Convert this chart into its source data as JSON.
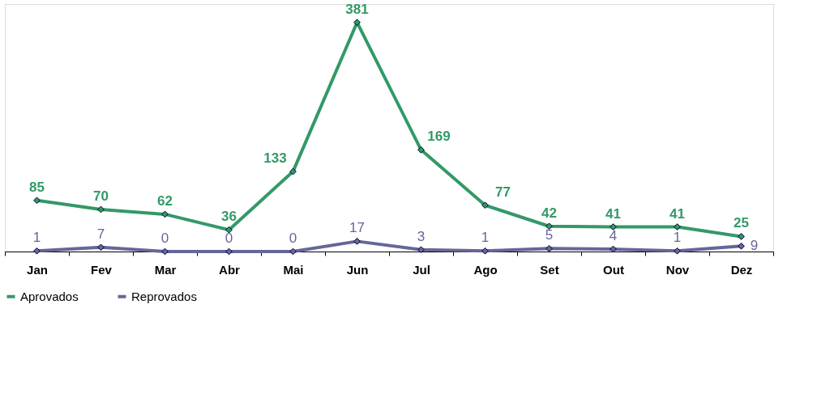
{
  "chart_data": {
    "type": "line",
    "categories": [
      "Jan",
      "Fev",
      "Mar",
      "Abr",
      "Mai",
      "Jun",
      "Jul",
      "Ago",
      "Set",
      "Out",
      "Nov",
      "Dez"
    ],
    "series": [
      {
        "name": "Aprovados",
        "color": "#339966",
        "values": [
          85,
          70,
          62,
          36,
          133,
          381,
          169,
          77,
          42,
          41,
          41,
          25
        ]
      },
      {
        "name": "Reprovados",
        "color": "#666699",
        "values": [
          1,
          7,
          0,
          0,
          0,
          17,
          3,
          1,
          5,
          4,
          1,
          9
        ]
      }
    ],
    "data_labels": true,
    "marker": "diamond",
    "legend": "bottom",
    "grid": false
  }
}
